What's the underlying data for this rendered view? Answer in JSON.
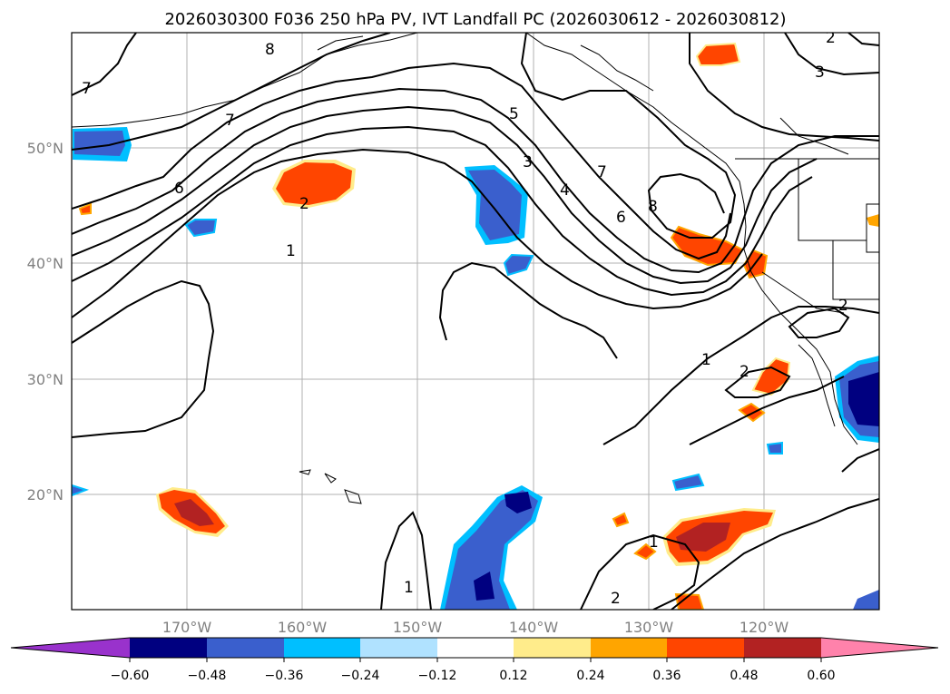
{
  "title": "2026030300 F036 250 hPa PV, IVT Landfall PC (2026030612 - 2026030812)",
  "map": {
    "lon_labels": [
      "170°W",
      "160°W",
      "150°W",
      "140°W",
      "130°W",
      "120°W"
    ],
    "lat_labels": [
      "50°N",
      "40°N",
      "30°N",
      "20°N"
    ],
    "contour_labels": [
      "7",
      "8",
      "7",
      "6",
      "2",
      "1",
      "5",
      "3",
      "4",
      "7",
      "6",
      "8",
      "3",
      "2",
      "1",
      "2",
      "2",
      "1",
      "1",
      "2"
    ]
  },
  "colorbar": {
    "ticks": [
      "−0.60",
      "−0.48",
      "−0.36",
      "−0.24",
      "−0.12",
      "0.12",
      "0.24",
      "0.36",
      "0.48",
      "0.60"
    ],
    "colors": {
      "lt_min060": "#9932cc",
      "m060_m048": "#000080",
      "m048_m036": "#3a5fcd",
      "m036_m024": "#00bfff",
      "m024_m012": "#b0e2ff",
      "m012_p012": "#ffffff",
      "p012_p024": "#ffec8b",
      "p024_p036": "#ffa500",
      "p036_p048": "#ff4500",
      "p048_p060": "#b22222",
      "gt_p060": "#ff82ab"
    }
  }
}
